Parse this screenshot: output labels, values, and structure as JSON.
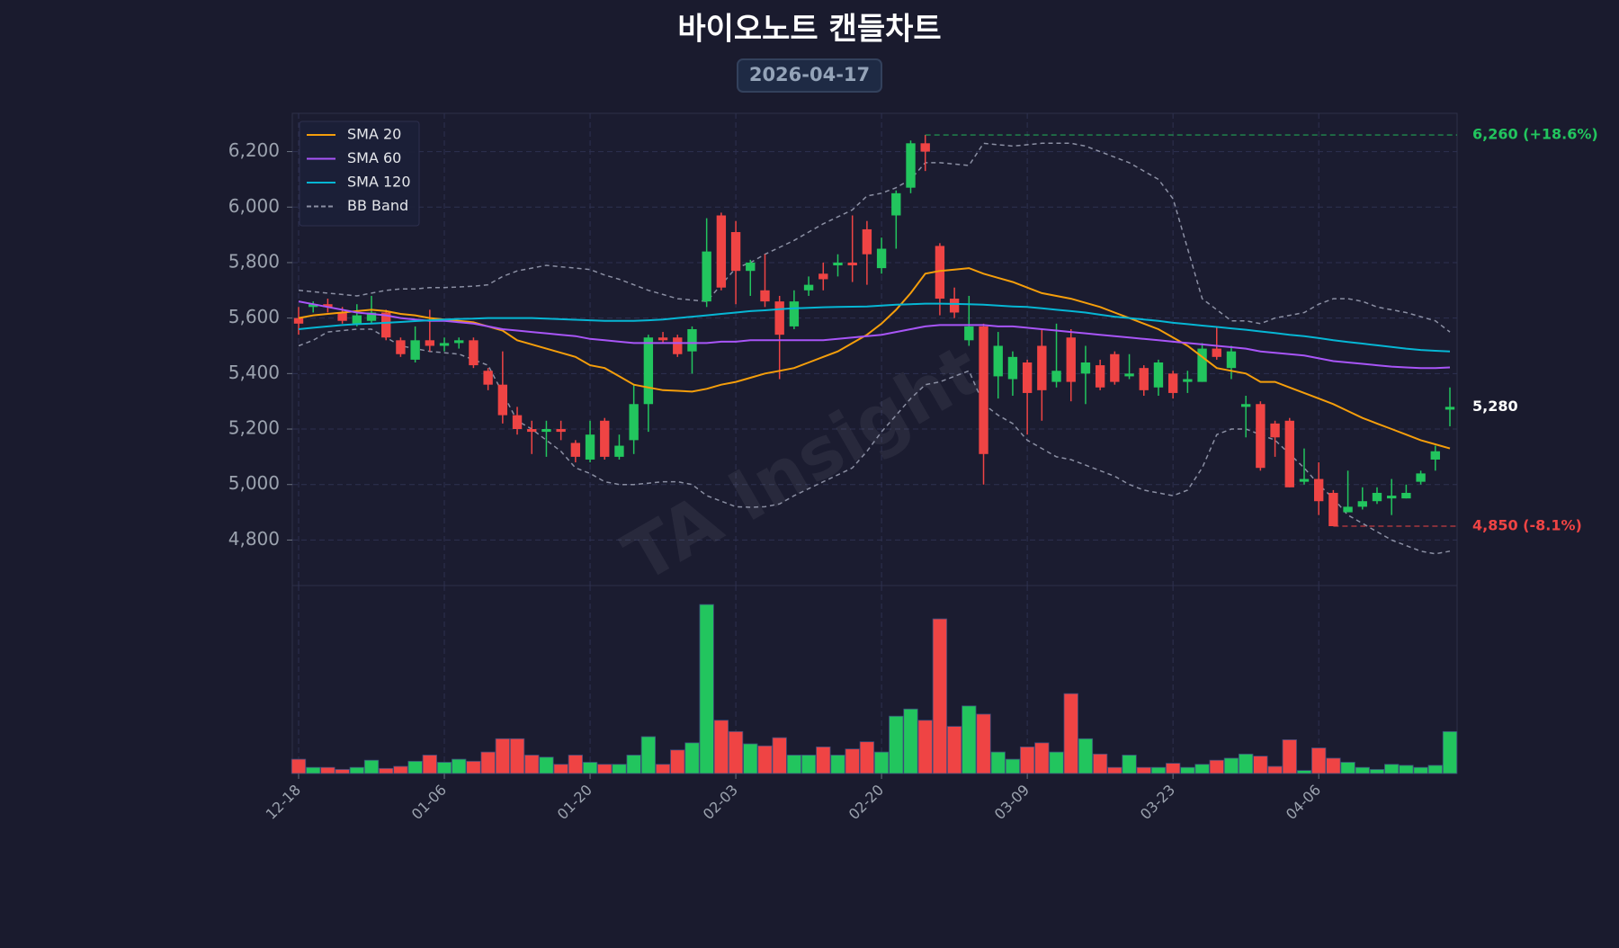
{
  "chart_data": {
    "type": "candlestick",
    "title": "바이오노트 캔들차트",
    "subtitle": "2026-04-17",
    "watermark": "TA Insight",
    "categories": [
      "12-18",
      null,
      null,
      null,
      null,
      null,
      null,
      null,
      null,
      null,
      "01-06",
      null,
      null,
      null,
      null,
      null,
      null,
      null,
      null,
      null,
      "01-20",
      null,
      null,
      null,
      null,
      null,
      null,
      null,
      null,
      null,
      "02-03",
      null,
      null,
      null,
      null,
      null,
      null,
      null,
      null,
      null,
      "02-20",
      null,
      null,
      null,
      null,
      null,
      null,
      null,
      null,
      null,
      "03-09",
      null,
      null,
      null,
      null,
      null,
      null,
      null,
      null,
      null,
      "03-23",
      null,
      null,
      null,
      null,
      null,
      null,
      null,
      null,
      null,
      "04-06",
      null,
      null,
      null,
      null,
      null,
      null,
      null,
      null,
      null
    ],
    "open": [
      5600,
      5640,
      5650,
      5620,
      5580,
      5590,
      5620,
      5520,
      5450,
      5520,
      5500,
      5510,
      5520,
      5410,
      5360,
      5250,
      5200,
      5190,
      5200,
      5150,
      5090,
      5230,
      5100,
      5160,
      5290,
      5530,
      5530,
      5480,
      5660,
      5970,
      5910,
      5770,
      5700,
      5660,
      5570,
      5700,
      5760,
      5790,
      5800,
      5920,
      5780,
      5970,
      6070,
      6230,
      5860,
      5670,
      5520,
      5570,
      5390,
      5380,
      5440,
      5500,
      5370,
      5530,
      5400,
      5430,
      5470,
      5390,
      5420,
      5350,
      5400,
      5370,
      5370,
      5490,
      5420,
      5280,
      5290,
      5220,
      5230,
      5010,
      5020,
      4970,
      4900,
      4920,
      4940,
      4950,
      4950,
      5010,
      5090,
      5270
    ],
    "high": [
      5640,
      5660,
      5670,
      5640,
      5650,
      5680,
      5630,
      5530,
      5570,
      5630,
      5530,
      5530,
      5530,
      5420,
      5480,
      5280,
      5230,
      5230,
      5230,
      5160,
      5230,
      5240,
      5180,
      5360,
      5540,
      5550,
      5540,
      5570,
      5960,
      5980,
      5950,
      5810,
      5830,
      5680,
      5700,
      5750,
      5800,
      5830,
      5970,
      5950,
      5890,
      6060,
      6240,
      6260,
      5870,
      5710,
      5680,
      5580,
      5550,
      5480,
      5450,
      5560,
      5580,
      5560,
      5500,
      5450,
      5480,
      5470,
      5430,
      5450,
      5410,
      5410,
      5510,
      5570,
      5500,
      5320,
      5300,
      5230,
      5240,
      5130,
      5080,
      4980,
      5050,
      4990,
      4990,
      5020,
      5000,
      5050,
      5140,
      5350
    ],
    "low": [
      5540,
      5620,
      5620,
      5580,
      5570,
      5580,
      5520,
      5460,
      5440,
      5480,
      5480,
      5490,
      5420,
      5340,
      5220,
      5180,
      5110,
      5100,
      5160,
      5080,
      5080,
      5090,
      5090,
      5110,
      5190,
      5510,
      5460,
      5400,
      5640,
      5700,
      5650,
      5680,
      5640,
      5380,
      5560,
      5680,
      5700,
      5750,
      5730,
      5720,
      5760,
      5850,
      6050,
      6130,
      5610,
      5600,
      5500,
      5000,
      5310,
      5320,
      5180,
      5230,
      5350,
      5300,
      5290,
      5340,
      5360,
      5380,
      5320,
      5320,
      5310,
      5330,
      5370,
      5450,
      5380,
      5170,
      5050,
      5100,
      4990,
      5000,
      4890,
      4850,
      4900,
      4910,
      4930,
      4890,
      4950,
      5000,
      5050,
      5210
    ],
    "close": [
      5580,
      5650,
      5640,
      5590,
      5610,
      5620,
      5530,
      5470,
      5520,
      5500,
      5510,
      5520,
      5430,
      5360,
      5250,
      5200,
      5190,
      5200,
      5190,
      5100,
      5180,
      5100,
      5140,
      5290,
      5530,
      5520,
      5470,
      5560,
      5840,
      5710,
      5770,
      5800,
      5660,
      5540,
      5660,
      5720,
      5740,
      5800,
      5790,
      5830,
      5850,
      6050,
      6230,
      6200,
      5670,
      5620,
      5570,
      5110,
      5500,
      5460,
      5330,
      5340,
      5410,
      5370,
      5440,
      5350,
      5370,
      5400,
      5340,
      5440,
      5330,
      5380,
      5490,
      5460,
      5480,
      5290,
      5060,
      5170,
      4990,
      5020,
      4940,
      4850,
      4920,
      4940,
      4970,
      4960,
      4970,
      5040,
      5120,
      5280
    ],
    "volume": [
      14,
      6,
      6,
      4,
      6,
      13,
      5,
      7,
      12,
      18,
      11,
      14,
      12,
      21,
      34,
      34,
      18,
      16,
      9,
      18,
      11,
      9,
      9,
      18,
      36,
      9,
      23,
      30,
      165,
      52,
      41,
      29,
      27,
      35,
      18,
      18,
      26,
      18,
      24,
      31,
      21,
      56,
      63,
      52,
      151,
      46,
      66,
      58,
      21,
      14,
      26,
      30,
      21,
      78,
      34,
      19,
      6,
      18,
      6,
      6,
      10,
      6,
      9,
      13,
      15,
      19,
      17,
      7,
      33,
      3,
      25,
      15,
      11,
      6,
      4,
      9,
      8,
      6,
      8,
      41
    ],
    "up_color": "#22c55e",
    "down_color": "#ef4444",
    "ylim": [
      4636,
      6338
    ],
    "volume_ylim": [
      0,
      180
    ],
    "yticks": [
      {
        "value": 4800,
        "label": "4,800"
      },
      {
        "value": 5000,
        "label": "5,000"
      },
      {
        "value": 5200,
        "label": "5,200"
      },
      {
        "value": 5400,
        "label": "5,400"
      },
      {
        "value": 5600,
        "label": "5,600"
      },
      {
        "value": 5800,
        "label": "5,800"
      },
      {
        "value": 6000,
        "label": "6,000"
      },
      {
        "value": 6200,
        "label": "6,200"
      }
    ],
    "grid": true,
    "lines": [
      {
        "name": "SMA 20",
        "color": "#f59e0b",
        "values": [
          5600,
          5610,
          5615,
          5620,
          5625,
          5630,
          5625,
          5615,
          5610,
          5600,
          5595,
          5590,
          5585,
          5570,
          5555,
          5520,
          5505,
          5490,
          5475,
          5460,
          5430,
          5420,
          5390,
          5360,
          5350,
          5340,
          5338,
          5335,
          5345,
          5360,
          5370,
          5385,
          5400,
          5410,
          5420,
          5440,
          5460,
          5480,
          5510,
          5540,
          5580,
          5630,
          5690,
          5760,
          5770,
          5775,
          5780,
          5760,
          5745,
          5730,
          5710,
          5690,
          5680,
          5670,
          5655,
          5640,
          5620,
          5600,
          5580,
          5560,
          5530,
          5500,
          5460,
          5420,
          5410,
          5400,
          5370,
          5370,
          5350,
          5330,
          5310,
          5290,
          5265,
          5240,
          5220,
          5200,
          5180,
          5160,
          5145,
          5130
        ]
      },
      {
        "name": "SMA 60",
        "color": "#a855f7",
        "values": [
          5660,
          5650,
          5640,
          5630,
          5620,
          5615,
          5610,
          5600,
          5595,
          5590,
          5590,
          5585,
          5580,
          5570,
          5560,
          5555,
          5550,
          5545,
          5540,
          5535,
          5525,
          5520,
          5515,
          5510,
          5510,
          5510,
          5510,
          5510,
          5510,
          5515,
          5515,
          5520,
          5520,
          5520,
          5520,
          5520,
          5520,
          5525,
          5530,
          5535,
          5540,
          5550,
          5560,
          5570,
          5575,
          5575,
          5575,
          5575,
          5570,
          5570,
          5565,
          5560,
          5555,
          5550,
          5545,
          5540,
          5535,
          5530,
          5525,
          5520,
          5515,
          5510,
          5505,
          5500,
          5495,
          5490,
          5480,
          5475,
          5470,
          5465,
          5455,
          5445,
          5440,
          5435,
          5430,
          5425,
          5422,
          5420,
          5420,
          5422
        ]
      },
      {
        "name": "SMA 120",
        "color": "#06b6d4",
        "values": [
          5560,
          5565,
          5570,
          5575,
          5578,
          5580,
          5583,
          5586,
          5589,
          5592,
          5595,
          5597,
          5598,
          5600,
          5600,
          5600,
          5600,
          5598,
          5596,
          5594,
          5592,
          5590,
          5590,
          5590,
          5592,
          5595,
          5600,
          5605,
          5610,
          5615,
          5620,
          5625,
          5628,
          5632,
          5635,
          5637,
          5639,
          5640,
          5641,
          5642,
          5645,
          5648,
          5650,
          5652,
          5652,
          5651,
          5650,
          5648,
          5645,
          5642,
          5640,
          5635,
          5630,
          5625,
          5620,
          5612,
          5605,
          5600,
          5595,
          5590,
          5583,
          5578,
          5573,
          5568,
          5563,
          5558,
          5552,
          5546,
          5540,
          5535,
          5528,
          5520,
          5514,
          5508,
          5502,
          5496,
          5490,
          5485,
          5482,
          5480
        ]
      }
    ],
    "bb": {
      "name": "BB Band",
      "color": "#8b8fa3",
      "upper": [
        5700,
        5695,
        5690,
        5685,
        5680,
        5690,
        5700,
        5705,
        5705,
        5710,
        5710,
        5712,
        5715,
        5720,
        5750,
        5770,
        5780,
        5790,
        5785,
        5780,
        5775,
        5755,
        5740,
        5720,
        5700,
        5685,
        5670,
        5665,
        5660,
        5720,
        5780,
        5800,
        5830,
        5855,
        5880,
        5910,
        5940,
        5965,
        5990,
        6040,
        6050,
        6070,
        6100,
        6160,
        6160,
        6155,
        6150,
        6230,
        6225,
        6220,
        6225,
        6230,
        6230,
        6230,
        6220,
        6200,
        6180,
        6160,
        6130,
        6100,
        6030,
        5850,
        5670,
        5630,
        5590,
        5590,
        5580,
        5600,
        5610,
        5620,
        5650,
        5670,
        5670,
        5660,
        5640,
        5630,
        5620,
        5605,
        5590,
        5550
      ],
      "lower": [
        5500,
        5520,
        5550,
        5555,
        5560,
        5560,
        5530,
        5500,
        5490,
        5480,
        5475,
        5470,
        5450,
        5430,
        5330,
        5230,
        5200,
        5160,
        5120,
        5060,
        5040,
        5010,
        5000,
        5000,
        5005,
        5010,
        5010,
        5000,
        4960,
        4940,
        4920,
        4918,
        4920,
        4930,
        4960,
        4985,
        5010,
        5035,
        5060,
        5120,
        5190,
        5250,
        5310,
        5360,
        5370,
        5390,
        5410,
        5290,
        5250,
        5220,
        5160,
        5130,
        5100,
        5090,
        5070,
        5050,
        5030,
        5000,
        4980,
        4970,
        4960,
        4980,
        5060,
        5180,
        5200,
        5200,
        5180,
        5160,
        5110,
        5060,
        5000,
        4950,
        4890,
        4860,
        4830,
        4800,
        4780,
        4760,
        4750,
        4760
      ]
    },
    "annotations": [
      {
        "value": 6260,
        "label": "6,260 (+18.6%)",
        "color": "#22c55e",
        "dashed_line": true
      },
      {
        "value": 5280,
        "label": "5,280",
        "color": "#ffffff",
        "dashed_line": false
      },
      {
        "value": 4850,
        "label": "4,850 (-8.1%)",
        "color": "#ef4444",
        "dashed_line": true
      }
    ]
  }
}
